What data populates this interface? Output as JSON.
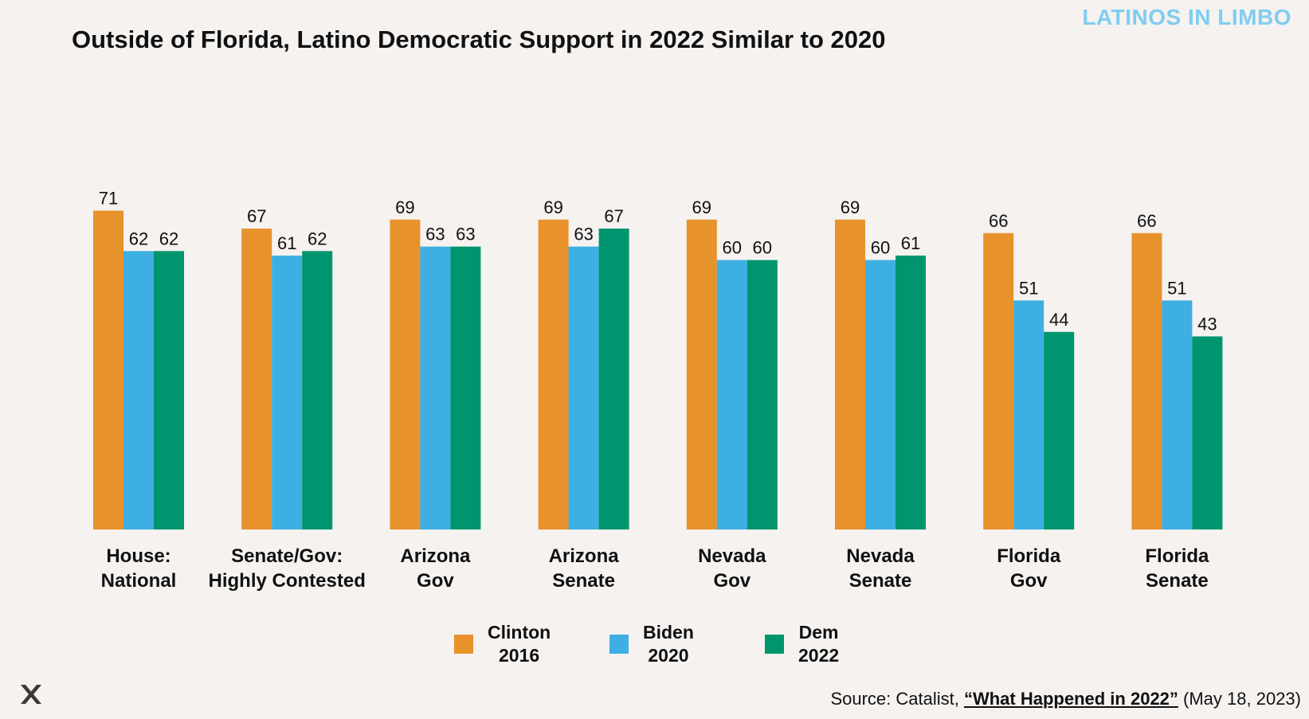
{
  "brand": "LATINOS IN LIMBO",
  "colors": {
    "clinton": "#e8922c",
    "biden": "#3eafe2",
    "dem": "#00956e",
    "brand": "#7fcdf0",
    "background": "#f5f2f0"
  },
  "source": {
    "prefix": "Source: Catalist, ",
    "link": "“What Happened in 2022”",
    "suffix": " (May 18, 2023)"
  },
  "logo_icon": "x-logo-icon",
  "chart_data": {
    "type": "bar",
    "title": "Outside of Florida, Latino Democratic Support in 2022 Similar to 2020",
    "xlabel": "",
    "ylabel": "",
    "ylim": [
      0,
      100
    ],
    "grid": false,
    "legend_position": "bottom-center",
    "categories": [
      [
        "House:",
        "National"
      ],
      [
        "Senate/Gov:",
        "Highly Contested"
      ],
      [
        "Arizona",
        "Gov"
      ],
      [
        "Arizona",
        "Senate"
      ],
      [
        "Nevada",
        "Gov"
      ],
      [
        "Nevada",
        "Senate"
      ],
      [
        "Florida",
        "Gov"
      ],
      [
        "Florida",
        "Senate"
      ]
    ],
    "series": [
      {
        "name": [
          "Clinton",
          "2016"
        ],
        "key": "clinton",
        "values": [
          71,
          67,
          69,
          69,
          69,
          69,
          66,
          66
        ]
      },
      {
        "name": [
          "Biden",
          "2020"
        ],
        "key": "biden",
        "values": [
          62,
          61,
          63,
          63,
          60,
          60,
          51,
          51
        ]
      },
      {
        "name": [
          "Dem",
          "2022"
        ],
        "key": "dem",
        "values": [
          62,
          62,
          63,
          67,
          60,
          61,
          44,
          43
        ]
      }
    ]
  }
}
